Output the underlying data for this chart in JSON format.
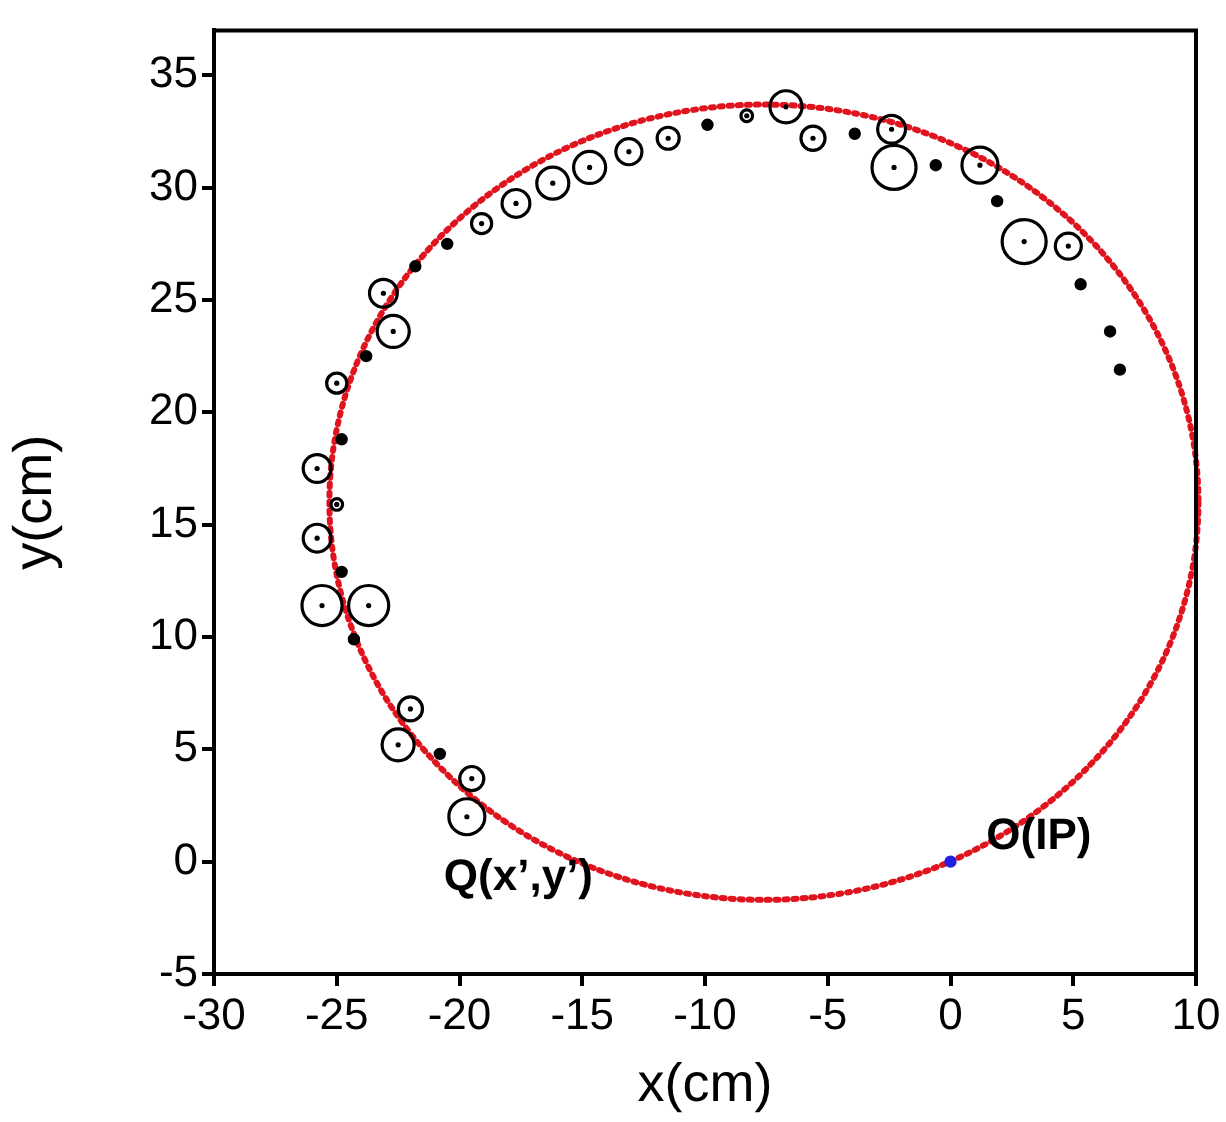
{
  "chart_data": {
    "type": "scatter",
    "xlabel": "x(cm)",
    "ylabel": "y(cm)",
    "xlim": [
      -30,
      10
    ],
    "ylim": [
      -5,
      37
    ],
    "xticks": [
      -30,
      -25,
      -20,
      -15,
      -10,
      -5,
      0,
      5,
      10
    ],
    "yticks": [
      -5,
      0,
      5,
      10,
      15,
      20,
      25,
      30,
      35
    ],
    "grid": false,
    "legend": false,
    "series": [
      {
        "type": "bubble",
        "color": "#000000",
        "x": [
          -25.8,
          -25.0,
          -25.0,
          -22.7,
          -23.1,
          -19.1,
          -17.7,
          -16.2,
          -14.7,
          -13.1,
          -11.5,
          -8.3,
          -6.7,
          -5.6,
          -2.4,
          -2.3,
          1.2,
          3.0,
          4.8,
          -25.8,
          -25.6,
          -23.7,
          -22.0,
          -22.5,
          -19.5,
          -19.7
        ],
        "values": [
          17.5,
          15.9,
          21.3,
          23.6,
          25.3,
          28.4,
          29.3,
          30.2,
          30.9,
          31.6,
          32.2,
          33.2,
          33.6,
          32.2,
          32.6,
          30.9,
          31.0,
          27.6,
          27.4,
          14.4,
          11.4,
          11.4,
          6.8,
          5.2,
          3.7,
          2.0
        ],
        "sizes": [
          0.4,
          0.07,
          0.21,
          0.53,
          0.4,
          0.21,
          0.4,
          0.53,
          0.53,
          0.35,
          0.25,
          0.07,
          0.53,
          0.3,
          0.4,
          1,
          0.67,
          1,
          0.35,
          0.4,
          0.83,
          0.83,
          0.3,
          0.53,
          0.3,
          0.67
        ]
      },
      {
        "color": "#000000",
        "marker": "circle",
        "x": [
          -24.8,
          -23.8,
          -21.8,
          -20.5,
          -9.9,
          -3.9,
          -0.6,
          1.9,
          5.3,
          6.5,
          6.9,
          -24.8,
          -24.3,
          -20.8
        ],
        "values": [
          18.8,
          22.5,
          26.5,
          27.5,
          32.8,
          32.4,
          31.0,
          29.4,
          25.7,
          23.6,
          21.9,
          12.9,
          9.9,
          4.8
        ]
      },
      {
        "color": "#2020e0",
        "marker": "circle",
        "x": [
          0
        ],
        "values": [
          0
        ]
      }
    ],
    "annotations": [
      "Q(x’,y’)",
      "O(IP)"
    ]
  }
}
